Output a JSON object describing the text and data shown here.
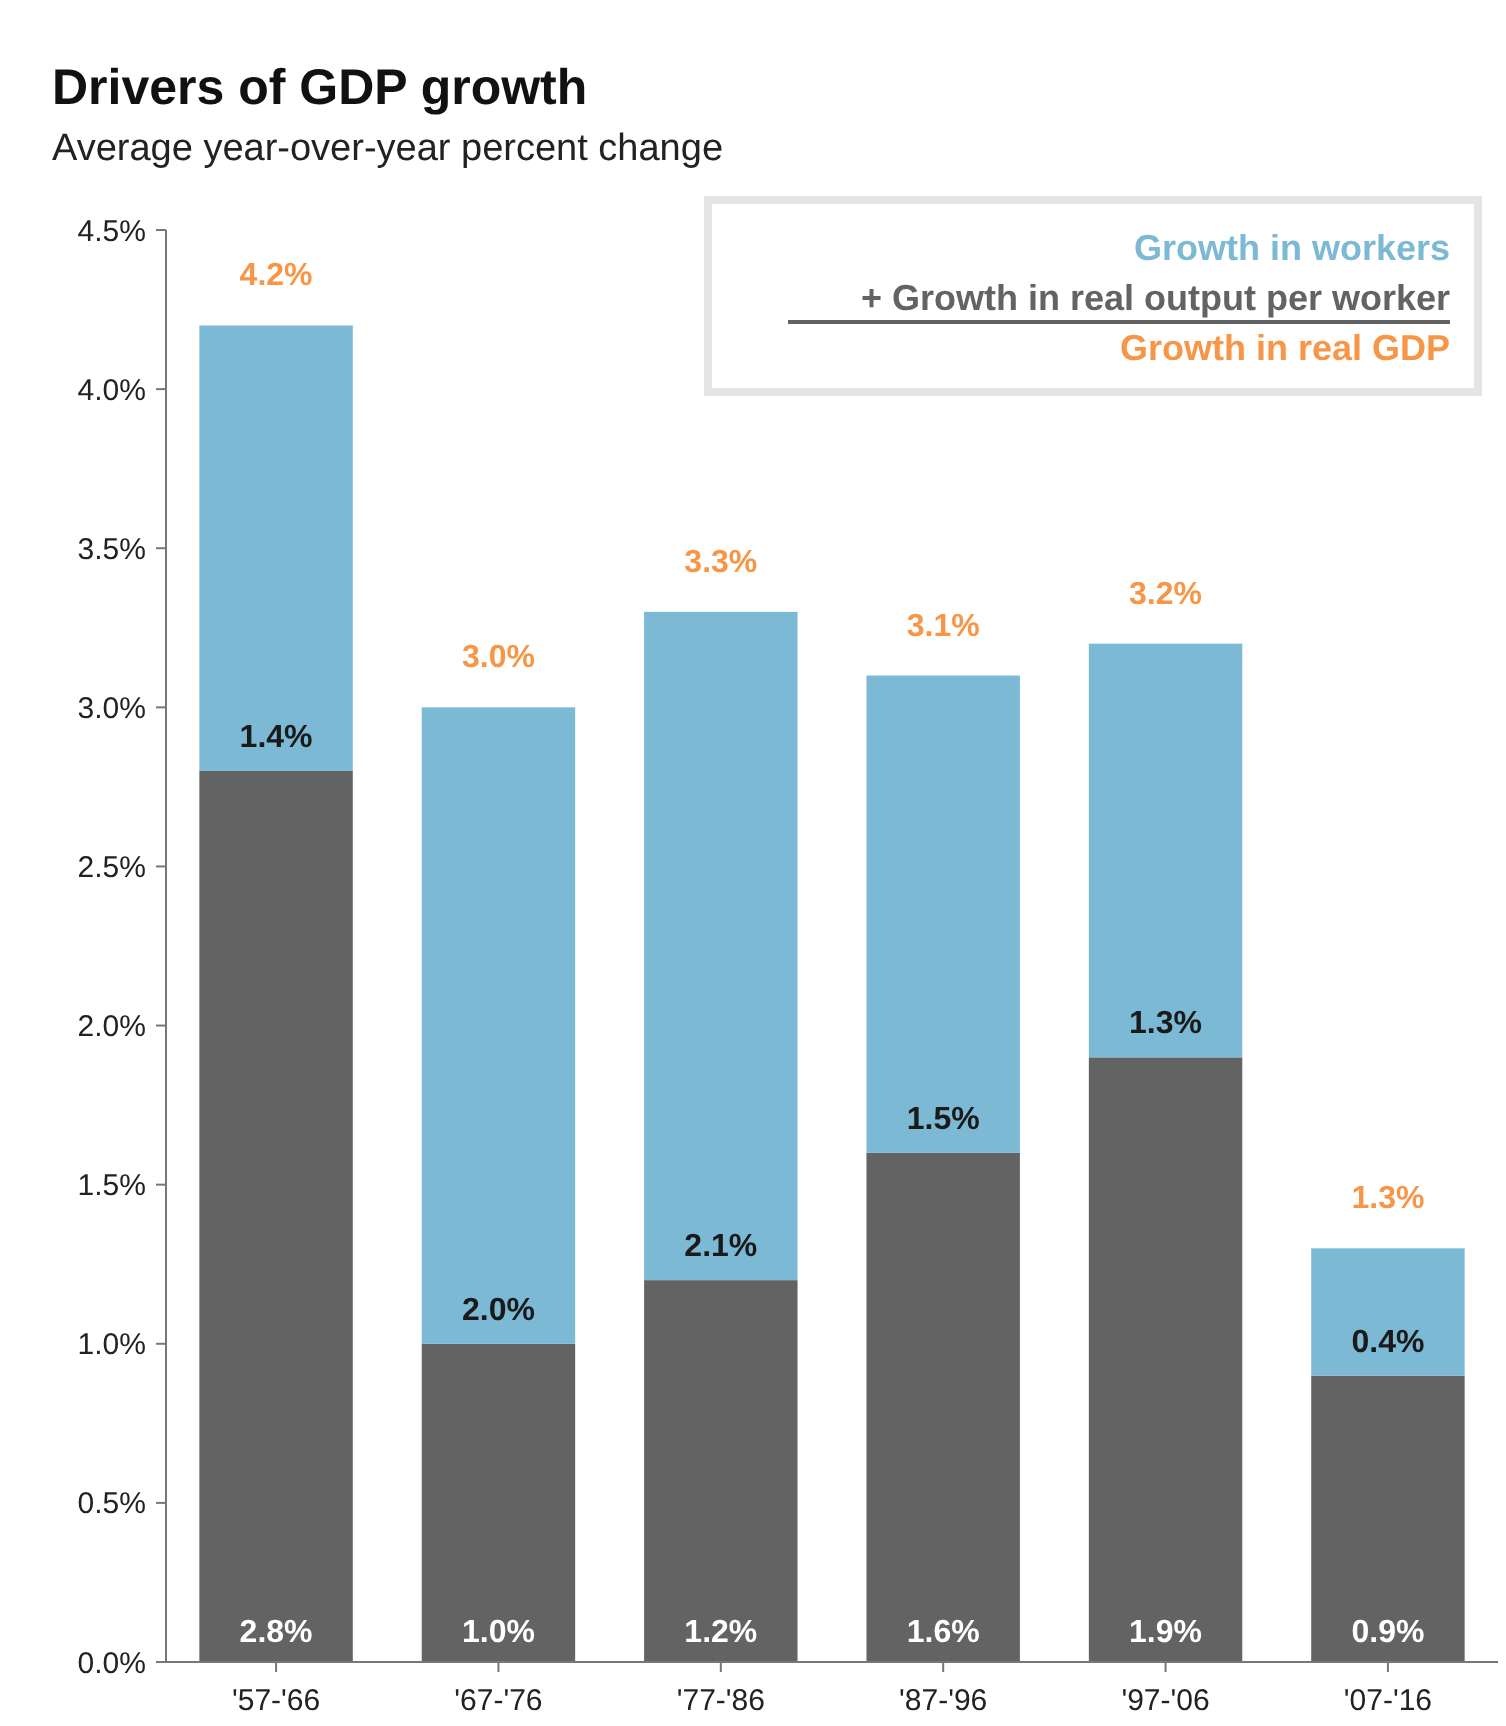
{
  "chart_data": {
    "type": "bar",
    "title": "Drivers of GDP growth",
    "subtitle": "Average year-over-year percent change",
    "categories": [
      "'57-'66",
      "'67-'76",
      "'77-'86",
      "'87-'96",
      "'97-'06",
      "'07-'16"
    ],
    "stacked": true,
    "series": [
      {
        "name": "+ Growth in real output per worker",
        "color": "#636363",
        "values": [
          2.8,
          1.0,
          1.2,
          1.6,
          1.9,
          0.9
        ],
        "value_labels": [
          "2.8%",
          "1.0%",
          "1.2%",
          "1.6%",
          "1.9%",
          "0.9%"
        ]
      },
      {
        "name": "Growth in workers",
        "color": "#7cb9d5",
        "values": [
          1.4,
          2.0,
          2.1,
          1.5,
          1.3,
          0.4
        ],
        "value_labels": [
          "1.4%",
          "2.0%",
          "2.1%",
          "1.5%",
          "1.3%",
          "0.4%"
        ]
      }
    ],
    "totals": [
      "4.2%",
      "3.0%",
      "3.3%",
      "3.1%",
      "3.2%",
      "1.3%"
    ],
    "annotations": [
      "Growth in real GDP"
    ],
    "ylim": [
      0,
      4.5
    ],
    "yticks": [
      {
        "value": 0,
        "label": "0.0%"
      },
      {
        "value": 0.5,
        "label": "0.5%"
      },
      {
        "value": 1,
        "label": "1.0%"
      },
      {
        "value": 1.5,
        "label": "1.5%"
      },
      {
        "value": 2,
        "label": "2.0%"
      },
      {
        "value": 2.5,
        "label": "2.5%"
      },
      {
        "value": 3,
        "label": "3.0%"
      },
      {
        "value": 3.5,
        "label": "3.5%"
      },
      {
        "value": 4,
        "label": "4.0%"
      },
      {
        "value": 4.5,
        "label": "4.5%"
      }
    ],
    "grid": false,
    "legend": "top right"
  }
}
